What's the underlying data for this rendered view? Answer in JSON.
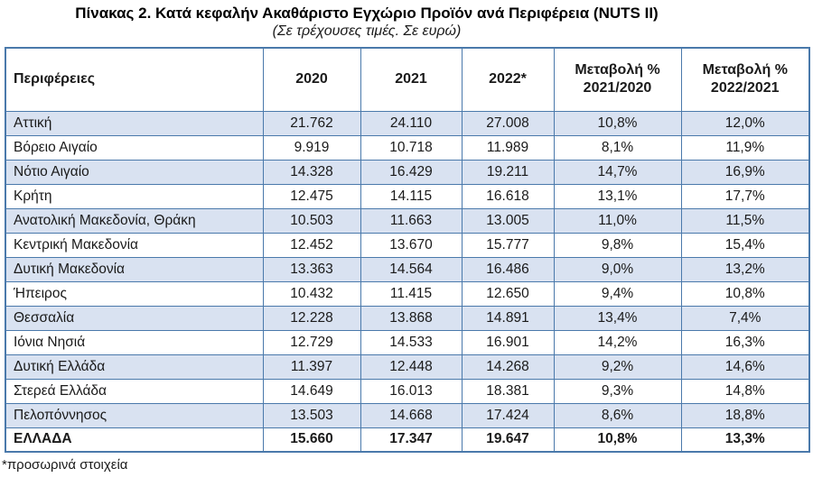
{
  "title": "Πίνακας 2. Κατά κεφαλήν Ακαθάριστο Εγχώριο Προϊόν ανά Περιφέρεια (NUTS II)",
  "subtitle": "(Σε τρέχουσες τιμές. Σε ευρώ)",
  "footnote": "*προσωρινά στοιχεία",
  "colors": {
    "band": "#d9e2f1",
    "border": "#4a79ab",
    "text": "#1a1a1a"
  },
  "table": {
    "columns": [
      "Περιφέρειες",
      "2020",
      "2021",
      "2022*",
      "Μεταβολή % 2021/2020",
      "Μεταβολή % 2022/2021"
    ],
    "rows": [
      [
        "Αττική",
        "21.762",
        "24.110",
        "27.008",
        "10,8%",
        "12,0%"
      ],
      [
        "Βόρειο Αιγαίο",
        "9.919",
        "10.718",
        "11.989",
        "8,1%",
        "11,9%"
      ],
      [
        "Νότιο Αιγαίο",
        "14.328",
        "16.429",
        "19.211",
        "14,7%",
        "16,9%"
      ],
      [
        "Κρήτη",
        "12.475",
        "14.115",
        "16.618",
        "13,1%",
        "17,7%"
      ],
      [
        "Ανατολική Μακεδονία, Θράκη",
        "10.503",
        "11.663",
        "13.005",
        "11,0%",
        "11,5%"
      ],
      [
        "Κεντρική Μακεδονία",
        "12.452",
        "13.670",
        "15.777",
        "9,8%",
        "15,4%"
      ],
      [
        "Δυτική Μακεδονία",
        "13.363",
        "14.564",
        "16.486",
        "9,0%",
        "13,2%"
      ],
      [
        "Ήπειρος",
        "10.432",
        "11.415",
        "12.650",
        "9,4%",
        "10,8%"
      ],
      [
        "Θεσσαλία",
        "12.228",
        "13.868",
        "14.891",
        "13,4%",
        "7,4%"
      ],
      [
        "Ιόνια Νησιά",
        "12.729",
        "14.533",
        "16.901",
        "14,2%",
        "16,3%"
      ],
      [
        "Δυτική Ελλάδα",
        "11.397",
        "12.448",
        "14.268",
        "9,2%",
        "14,6%"
      ],
      [
        "Στερεά Ελλάδα",
        "14.649",
        "16.013",
        "18.381",
        "9,3%",
        "14,8%"
      ],
      [
        "Πελοπόννησος",
        "13.503",
        "14.668",
        "17.424",
        "8,6%",
        "18,8%"
      ]
    ],
    "total_row": [
      "ΕΛΛΑΔΑ",
      "15.660",
      "17.347",
      "19.647",
      "10,8%",
      "13,3%"
    ]
  }
}
